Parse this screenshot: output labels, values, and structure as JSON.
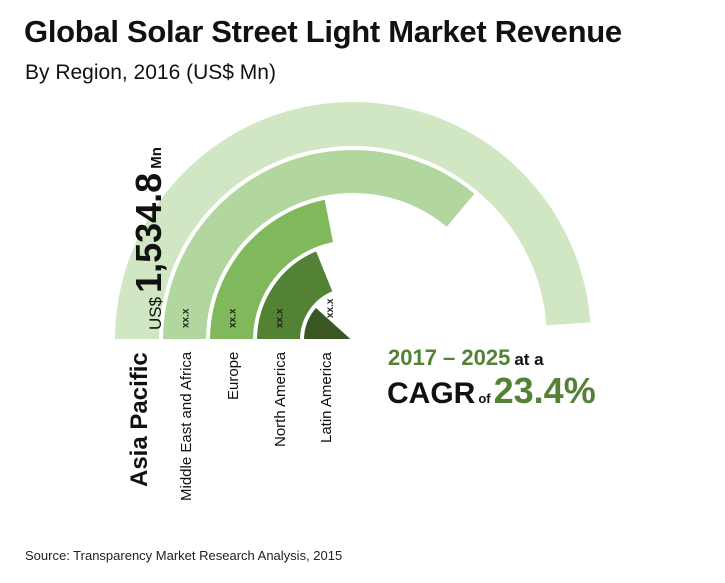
{
  "header": {
    "title": "Global Solar Street Light Market Revenue",
    "subtitle": "By Region, 2016 (US$ Mn)"
  },
  "highlight": {
    "currency": "US$",
    "value": "1,534.8",
    "unit": "Mn"
  },
  "cagr": {
    "years": "2017 – 2025",
    "at_a": "at a",
    "label": "CAGR",
    "of": "of",
    "value": "23.4%"
  },
  "source": "Source: Transparency Market Research Analysis, 2015",
  "chart_data": {
    "type": "radial-bar",
    "title": "Global Solar Street Light Market Revenue",
    "subtitle": "By Region, 2016 (US$ Mn)",
    "categories": [
      "Asia Pacific",
      "Middle East and Africa",
      "Europe",
      "North America",
      "Latin America"
    ],
    "values": [
      1534.8,
      null,
      null,
      null,
      null
    ],
    "value_labels": [
      "US$ 1,534.8 Mn",
      "xx.x",
      "xx.x",
      "xx.x",
      "xx.x"
    ],
    "relative_sweep_degrees": [
      176,
      130,
      79,
      68,
      42
    ],
    "colors": [
      "#d1e7c3",
      "#b2d79e",
      "#80b95b",
      "#548235",
      "#385723"
    ],
    "unit": "US$ Mn",
    "annotation": "2017 – 2025 at a CAGR of 23.4%"
  }
}
